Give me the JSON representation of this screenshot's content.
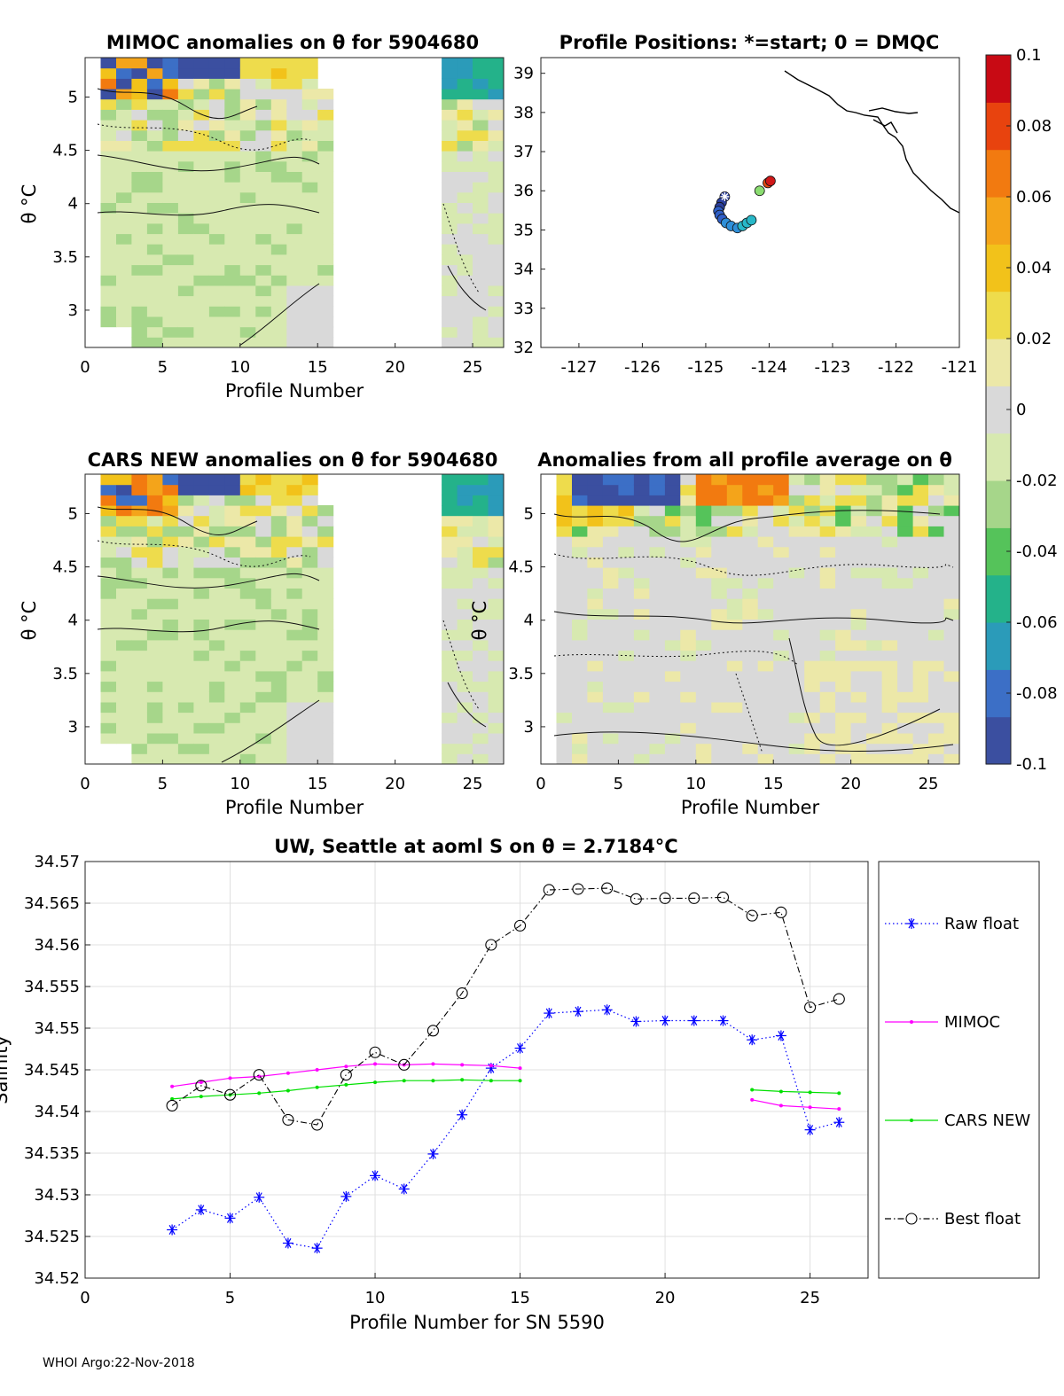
{
  "footer": "WHOI Argo:22-Nov-2018",
  "colors": {
    "raw": "#0000ff",
    "mimoc": "#ff00ff",
    "cars": "#00e000",
    "best": "#000000",
    "grid": "#e0e0e0",
    "anomaly_scale": [
      "#3b4fa0",
      "#3c6fc6",
      "#2b9bb9",
      "#24b28a",
      "#55c35a",
      "#a6d68a",
      "#d7e9b0",
      "#d9d9d9",
      "#ece8a8",
      "#eedc4c",
      "#f2c21a",
      "#f4a41a",
      "#f27a10",
      "#e8430e",
      "#c80a14"
    ]
  },
  "panels": {
    "mimoc": {
      "title": "MIMOC anomalies on θ  for 5904680",
      "ylabel": "θ °C",
      "xlabel": "Profile Number",
      "xticks": [
        "0",
        "5",
        "10",
        "15",
        "20",
        "25"
      ],
      "yticks": [
        "3",
        "3.5",
        "4",
        "4.5",
        "5"
      ]
    },
    "positions": {
      "title": "Profile Positions: *=start; 0 = DMQC",
      "xticks": [
        "-127",
        "-126",
        "-125",
        "-124",
        "-123",
        "-122",
        "-121"
      ],
      "yticks": [
        "32",
        "33",
        "34",
        "35",
        "36",
        "37",
        "38",
        "39"
      ],
      "positions": [
        {
          "lon": -124.7,
          "lat": 35.85,
          "c": 0.0
        },
        {
          "lon": -124.75,
          "lat": 35.7,
          "c": 0.05
        },
        {
          "lon": -124.78,
          "lat": 35.58,
          "c": 0.1
        },
        {
          "lon": -124.8,
          "lat": 35.48,
          "c": 0.15
        },
        {
          "lon": -124.78,
          "lat": 35.38,
          "c": 0.2
        },
        {
          "lon": -124.74,
          "lat": 35.28,
          "c": 0.25
        },
        {
          "lon": -124.68,
          "lat": 35.18,
          "c": 0.3
        },
        {
          "lon": -124.6,
          "lat": 35.1,
          "c": 0.35
        },
        {
          "lon": -124.5,
          "lat": 35.05,
          "c": 0.4
        },
        {
          "lon": -124.42,
          "lat": 35.1,
          "c": 0.45
        },
        {
          "lon": -124.35,
          "lat": 35.18,
          "c": 0.5
        },
        {
          "lon": -124.28,
          "lat": 35.25,
          "c": 0.55
        },
        {
          "lon": -124.15,
          "lat": 36.0,
          "c": 0.8
        },
        {
          "lon": -124.02,
          "lat": 36.2,
          "c": 0.95
        },
        {
          "lon": -123.98,
          "lat": 36.25,
          "c": 1.0
        }
      ]
    },
    "cars": {
      "title": "CARS NEW anomalies on θ for 5904680",
      "ylabel": "θ °C",
      "xlabel": "Profile Number",
      "xticks": [
        "0",
        "5",
        "10",
        "15",
        "20",
        "25"
      ],
      "yticks": [
        "3",
        "3.5",
        "4",
        "4.5",
        "5"
      ]
    },
    "allprof": {
      "title": "Anomalies from all profile average on θ",
      "ylabel": "θ °C",
      "xlabel": "Profile Number",
      "xticks": [
        "0",
        "5",
        "10",
        "15",
        "20",
        "25"
      ],
      "yticks": [
        "3",
        "3.5",
        "4",
        "4.5",
        "5"
      ]
    }
  },
  "colorbar": {
    "ticks": [
      "0.1",
      "0.08",
      "0.06",
      "0.04",
      "0.02",
      "0",
      "-0.02",
      "-0.04",
      "-0.06",
      "-0.08",
      "-0.1"
    ]
  },
  "chart_data": {
    "type": "line",
    "title": "UW, Seattle at aoml S on θ = 2.7184°C",
    "xlabel": "Profile Number for SN 5590",
    "ylabel": "Salinity",
    "xlim": [
      0,
      27
    ],
    "ylim": [
      34.52,
      34.57
    ],
    "xticks": [
      "0",
      "5",
      "10",
      "15",
      "20",
      "25"
    ],
    "yticks": [
      "34.52",
      "34.525",
      "34.53",
      "34.535",
      "34.54",
      "34.545",
      "34.55",
      "34.555",
      "34.56",
      "34.565",
      "34.57"
    ],
    "series": [
      {
        "name": "Raw float",
        "style": "dotted-star",
        "x": [
          3,
          4,
          5,
          6,
          7,
          8,
          9,
          10,
          11,
          12,
          13,
          14,
          15,
          16,
          17,
          18,
          19,
          20,
          21,
          22,
          23,
          24,
          25,
          26
        ],
        "values": [
          34.5258,
          34.5282,
          34.5272,
          34.5297,
          34.5242,
          34.5236,
          34.5298,
          34.5323,
          34.5307,
          34.5349,
          34.5396,
          34.5452,
          34.5476,
          34.5518,
          34.552,
          34.5522,
          34.5508,
          34.5509,
          34.5509,
          34.5509,
          34.5486,
          34.5491,
          34.5378,
          34.5387
        ]
      },
      {
        "name": "MIMOC",
        "style": "solid-dot",
        "x": [
          3,
          4,
          5,
          6,
          7,
          8,
          9,
          10,
          11,
          12,
          13,
          14,
          15,
          23,
          24,
          25,
          26
        ],
        "values": [
          34.543,
          34.5435,
          34.544,
          34.5442,
          34.5446,
          34.545,
          34.5454,
          34.5457,
          34.5456,
          34.5457,
          34.5456,
          34.5455,
          34.5452,
          34.5414,
          34.5407,
          34.5405,
          34.5403
        ]
      },
      {
        "name": "CARS NEW",
        "style": "solid-dot",
        "x": [
          3,
          4,
          5,
          6,
          7,
          8,
          9,
          10,
          11,
          12,
          13,
          14,
          15,
          23,
          24,
          25,
          26
        ],
        "values": [
          34.5415,
          34.5418,
          34.542,
          34.5422,
          34.5425,
          34.5429,
          34.5432,
          34.5435,
          34.5437,
          34.5437,
          34.5438,
          34.5437,
          34.5437,
          34.5426,
          34.5424,
          34.5423,
          34.5422
        ]
      },
      {
        "name": "Best float",
        "style": "dashdot-circle",
        "x": [
          3,
          4,
          5,
          6,
          7,
          8,
          9,
          10,
          11,
          12,
          13,
          14,
          15,
          16,
          17,
          18,
          19,
          20,
          21,
          22,
          23,
          24,
          25,
          26
        ],
        "values": [
          34.5407,
          34.5431,
          34.542,
          34.5444,
          34.539,
          34.5384,
          34.5444,
          34.5471,
          34.5456,
          34.5497,
          34.5542,
          34.56,
          34.5623,
          34.5666,
          34.5667,
          34.5668,
          34.5655,
          34.5656,
          34.5656,
          34.5657,
          34.5635,
          34.5639,
          34.5525,
          34.5535
        ]
      }
    ]
  }
}
